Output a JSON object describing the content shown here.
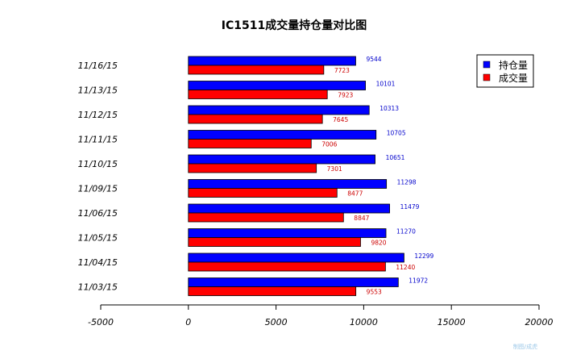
{
  "chart_data": {
    "type": "bar",
    "orientation": "horizontal",
    "title": "IC1511成交量持仓量对比图",
    "xlabel": "",
    "ylabel": "",
    "categories": [
      "11/16/15",
      "11/13/15",
      "11/12/15",
      "11/11/15",
      "11/10/15",
      "11/09/15",
      "11/06/15",
      "11/05/15",
      "11/04/15",
      "11/03/15"
    ],
    "series": [
      {
        "name": "持仓量",
        "color": "#0000ff",
        "label_color": "#0000cc",
        "values": [
          9544,
          10101,
          10313,
          10705,
          10651,
          11298,
          11479,
          11270,
          12299,
          11972
        ]
      },
      {
        "name": "成交量",
        "color": "#ff0000",
        "label_color": "#cc0000",
        "values": [
          7723,
          7923,
          7645,
          7006,
          7301,
          8477,
          8847,
          9820,
          11240,
          9553
        ]
      }
    ],
    "xlim": [
      -5000,
      20000
    ],
    "xticks": [
      "-5000",
      "0",
      "5000",
      "10000",
      "15000",
      "20000"
    ],
    "grid": false,
    "legend_position": "top-right"
  },
  "watermark": "制图/成虎"
}
